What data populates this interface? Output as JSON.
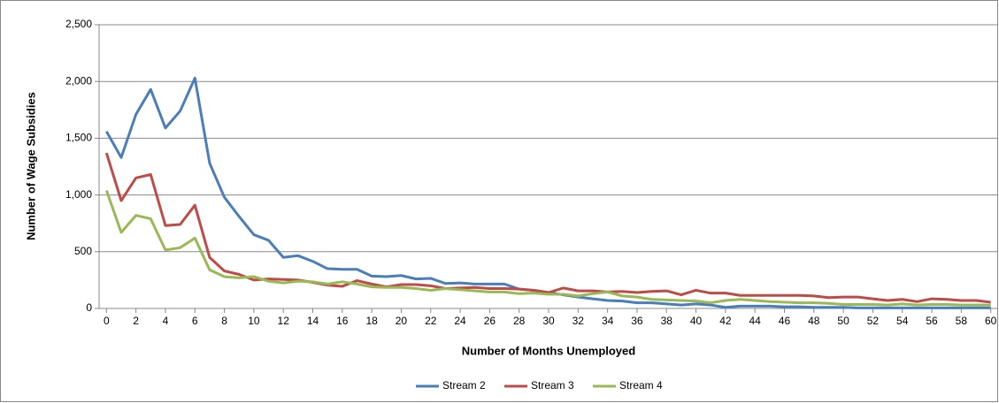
{
  "chart_data": {
    "type": "line",
    "x_label": "Number of Months Unemployed",
    "y_label": "Number of Wage Subsidies",
    "x": [
      0,
      1,
      2,
      3,
      4,
      5,
      6,
      7,
      8,
      9,
      10,
      11,
      12,
      13,
      14,
      15,
      16,
      17,
      18,
      19,
      20,
      21,
      22,
      23,
      24,
      25,
      26,
      27,
      28,
      29,
      30,
      31,
      32,
      33,
      34,
      35,
      36,
      37,
      38,
      39,
      40,
      41,
      42,
      43,
      44,
      45,
      46,
      47,
      48,
      49,
      50,
      51,
      52,
      53,
      54,
      55,
      56,
      57,
      58,
      59,
      60
    ],
    "xlim": [
      -0.5,
      60.5
    ],
    "xticks": [
      0,
      2,
      4,
      6,
      8,
      10,
      12,
      14,
      16,
      18,
      20,
      22,
      24,
      26,
      28,
      30,
      32,
      34,
      36,
      38,
      40,
      42,
      44,
      46,
      48,
      50,
      52,
      54,
      56,
      58,
      60
    ],
    "ylim": [
      0,
      2500
    ],
    "yticks": [
      0,
      {
        "value": 500,
        "label": "500"
      },
      {
        "value": 1000,
        "label": "1,000"
      },
      {
        "value": 1500,
        "label": "1,500"
      },
      {
        "value": 2000,
        "label": "2,000"
      },
      {
        "value": 2500,
        "label": "2,500"
      }
    ],
    "grid": true,
    "legend": "bottom",
    "series": [
      {
        "name": "Stream 2",
        "color": "#4a7ebb",
        "values": [
          1560,
          1330,
          1710,
          1930,
          1590,
          1740,
          2030,
          1280,
          980,
          810,
          650,
          600,
          450,
          465,
          415,
          350,
          345,
          345,
          285,
          280,
          290,
          260,
          265,
          220,
          225,
          215,
          215,
          215,
          170,
          160,
          140,
          120,
          100,
          85,
          70,
          65,
          50,
          50,
          40,
          30,
          40,
          30,
          10,
          20,
          20,
          20,
          15,
          15,
          10,
          10,
          10,
          5,
          5,
          5,
          5,
          5,
          5,
          5,
          5,
          5,
          5
        ]
      },
      {
        "name": "Stream 3",
        "color": "#be4b48",
        "values": [
          1370,
          950,
          1150,
          1180,
          730,
          740,
          910,
          450,
          330,
          300,
          250,
          260,
          255,
          250,
          230,
          205,
          195,
          245,
          215,
          190,
          210,
          210,
          200,
          175,
          180,
          185,
          175,
          175,
          170,
          160,
          140,
          180,
          155,
          155,
          145,
          150,
          140,
          150,
          155,
          120,
          160,
          135,
          135,
          115,
          115,
          115,
          115,
          115,
          110,
          95,
          100,
          100,
          85,
          70,
          80,
          60,
          85,
          80,
          70,
          70,
          55
        ]
      },
      {
        "name": "Stream 4",
        "color": "#98b954",
        "values": [
          1040,
          670,
          820,
          790,
          515,
          535,
          620,
          340,
          280,
          270,
          280,
          240,
          225,
          240,
          235,
          215,
          235,
          215,
          190,
          185,
          185,
          175,
          160,
          175,
          165,
          155,
          145,
          145,
          130,
          135,
          125,
          125,
          110,
          130,
          145,
          110,
          100,
          80,
          75,
          70,
          65,
          50,
          70,
          80,
          70,
          60,
          55,
          50,
          50,
          45,
          35,
          35,
          35,
          30,
          40,
          30,
          35,
          35,
          30,
          30,
          30
        ]
      }
    ]
  }
}
